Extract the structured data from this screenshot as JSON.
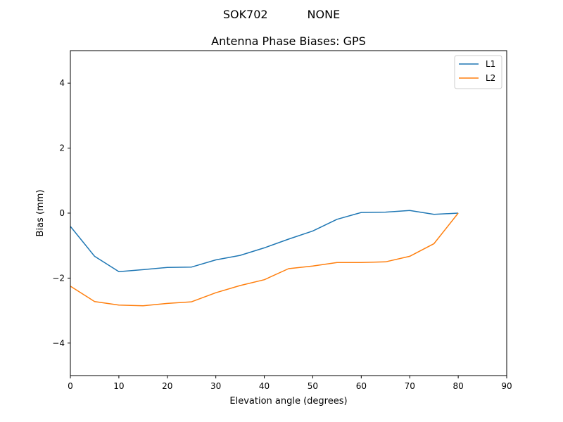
{
  "chart_data": {
    "type": "line",
    "suptitle": "SOK702           NONE",
    "title": "Antenna Phase Biases: GPS",
    "xlabel": "Elevation angle (degrees)",
    "ylabel": "Bias (mm)",
    "xlim": [
      0,
      90
    ],
    "ylim": [
      -5,
      5
    ],
    "xticks": [
      0,
      10,
      20,
      30,
      40,
      50,
      60,
      70,
      80,
      90
    ],
    "yticks": [
      -4,
      -2,
      0,
      2,
      4
    ],
    "grid": false,
    "legend_position": "top-right",
    "x": [
      0,
      5,
      10,
      15,
      20,
      25,
      30,
      35,
      40,
      45,
      50,
      55,
      60,
      65,
      70,
      75,
      80
    ],
    "series": [
      {
        "name": "L1",
        "color": "#1f77b4",
        "values": [
          -0.41,
          -1.33,
          -1.8,
          -1.74,
          -1.67,
          -1.66,
          -1.44,
          -1.3,
          -1.07,
          -0.8,
          -0.55,
          -0.19,
          0.02,
          0.03,
          0.08,
          -0.04,
          0.0
        ]
      },
      {
        "name": "L2",
        "color": "#ff7f0e",
        "values": [
          -2.25,
          -2.72,
          -2.83,
          -2.85,
          -2.78,
          -2.73,
          -2.45,
          -2.23,
          -2.05,
          -1.71,
          -1.63,
          -1.52,
          -1.52,
          -1.5,
          -1.33,
          -0.94,
          0.0
        ]
      }
    ]
  }
}
